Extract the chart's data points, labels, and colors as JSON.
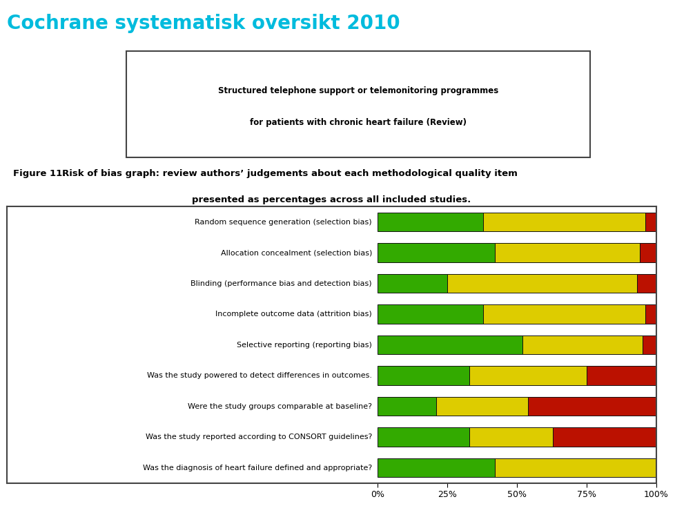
{
  "title_main": "Cochrane systematisk oversikt 2010",
  "title_main_color": "#00BBDD",
  "subtitle_box_line1": "Structured telephone support or telemonitoring programmes",
  "subtitle_box_line2": "for patients with chronic heart failure (Review)",
  "figure_label": "Figure 11.",
  "figure_caption_bold": "Risk of bias graph: review authors’ judgements about each methodological quality item",
  "figure_caption_normal": "presented as percentages across all included studies.",
  "categories": [
    "Random sequence generation (selection bias)",
    "Allocation concealment (selection bias)",
    "Blinding (performance bias and detection bias)",
    "Incomplete outcome data (attrition bias)",
    "Selective reporting (reporting bias)",
    "Was the study powered to detect differences in outcomes.",
    "Were the study groups comparable at baseline?",
    "Was the study reported according to CONSORT guidelines?",
    "Was the diagnosis of heart failure defined and appropriate?"
  ],
  "green_values": [
    38,
    42,
    25,
    38,
    52,
    33,
    21,
    33,
    42
  ],
  "yellow_values": [
    58,
    52,
    68,
    58,
    43,
    42,
    33,
    30,
    58
  ],
  "red_values": [
    4,
    6,
    7,
    4,
    5,
    25,
    46,
    37,
    0
  ],
  "green_color": "#33AA00",
  "yellow_color": "#DDCC00",
  "red_color": "#BB1100",
  "bar_edge_color": "#111111",
  "box_outline_color": "#444444",
  "background_color": "#FFFFFF",
  "xtick_labels": [
    "0%",
    "25%",
    "50%",
    "75%",
    "100%"
  ],
  "xtick_values": [
    0,
    25,
    50,
    75,
    100
  ]
}
